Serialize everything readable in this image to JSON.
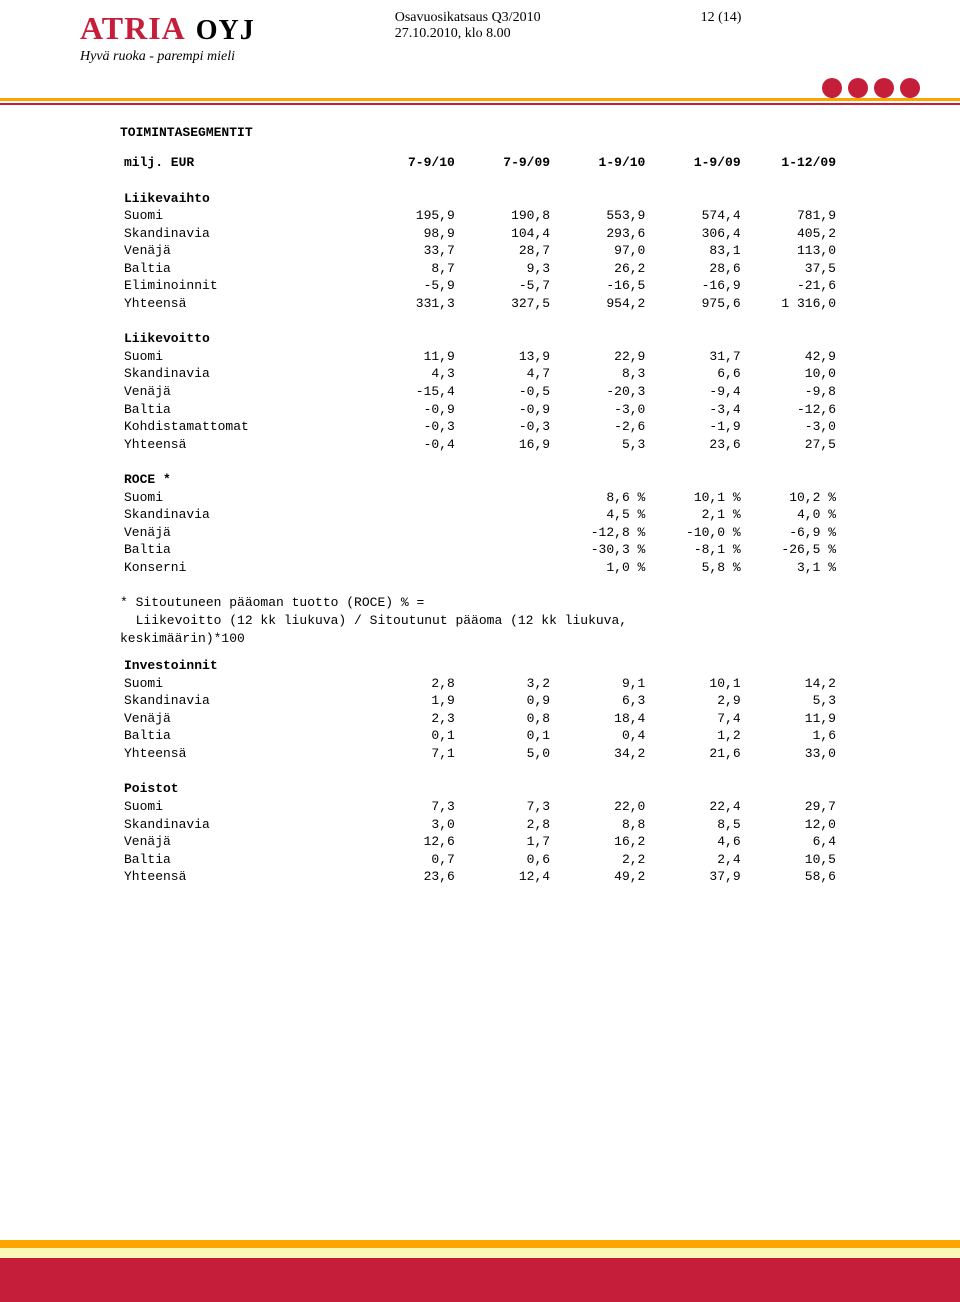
{
  "header": {
    "logo_main": "ATRIA",
    "logo_sub": "OYJ",
    "tagline": "Hyvä ruoka - parempi mieli",
    "doc_title": "Osavuosikatsaus Q3/2010",
    "doc_date": "27.10.2010, klo 8.00",
    "page_no": "12 (14)"
  },
  "colors": {
    "brand_red": "#c41e3a",
    "orange": "#ffa500",
    "cream": "#fef8b8"
  },
  "section_title": "TOIMINTASEGMENTIT",
  "col_header": {
    "label": "milj. EUR",
    "c1": "7-9/10",
    "c2": "7-9/09",
    "c3": "1-9/10",
    "c4": "1-9/09",
    "c5": "1-12/09"
  },
  "groups": [
    {
      "title": "Liikevaihto",
      "rows": [
        {
          "label": "Suomi",
          "v": [
            "195,9",
            "190,8",
            "553,9",
            "574,4",
            "781,9"
          ]
        },
        {
          "label": "Skandinavia",
          "v": [
            "98,9",
            "104,4",
            "293,6",
            "306,4",
            "405,2"
          ]
        },
        {
          "label": "Venäjä",
          "v": [
            "33,7",
            "28,7",
            "97,0",
            "83,1",
            "113,0"
          ]
        },
        {
          "label": "Baltia",
          "v": [
            "8,7",
            "9,3",
            "26,2",
            "28,6",
            "37,5"
          ]
        },
        {
          "label": "Eliminoinnit",
          "v": [
            "-5,9",
            "-5,7",
            "-16,5",
            "-16,9",
            "-21,6"
          ]
        }
      ],
      "total": {
        "label": "Yhteensä",
        "v": [
          "331,3",
          "327,5",
          "954,2",
          "975,6",
          "1 316,0"
        ]
      }
    },
    {
      "title": "Liikevoitto",
      "rows": [
        {
          "label": "Suomi",
          "v": [
            "11,9",
            "13,9",
            "22,9",
            "31,7",
            "42,9"
          ]
        },
        {
          "label": "Skandinavia",
          "v": [
            "4,3",
            "4,7",
            "8,3",
            "6,6",
            "10,0"
          ]
        },
        {
          "label": "Venäjä",
          "v": [
            "-15,4",
            "-0,5",
            "-20,3",
            "-9,4",
            "-9,8"
          ]
        },
        {
          "label": "Baltia",
          "v": [
            "-0,9",
            "-0,9",
            "-3,0",
            "-3,4",
            "-12,6"
          ]
        },
        {
          "label": "Kohdistamattomat",
          "v": [
            "-0,3",
            "-0,3",
            "-2,6",
            "-1,9",
            "-3,0"
          ]
        }
      ],
      "total": {
        "label": "Yhteensä",
        "v": [
          "-0,4",
          "16,9",
          "5,3",
          "23,6",
          "27,5"
        ]
      }
    }
  ],
  "roce": {
    "title": "ROCE *",
    "rows": [
      {
        "label": "Suomi",
        "v": [
          "8,6 %",
          "10,1 %",
          "10,2 %"
        ]
      },
      {
        "label": "Skandinavia",
        "v": [
          "4,5 %",
          "2,1 %",
          "4,0 %"
        ]
      },
      {
        "label": "Venäjä",
        "v": [
          "-12,8 %",
          "-10,0 %",
          "-6,9 %"
        ]
      },
      {
        "label": "Baltia",
        "v": [
          "-30,3 %",
          "-8,1 %",
          "-26,5 %"
        ]
      },
      {
        "label": "Konserni",
        "v": [
          "1,0 %",
          "5,8 %",
          "3,1 %"
        ]
      }
    ]
  },
  "footnote": {
    "l1": "* Sitoutuneen pääoman tuotto (ROCE) % =",
    "l2": "  Liikevoitto (12 kk liukuva) / Sitoutunut pääoma (12 kk liukuva,",
    "l3": "keskimäärin)*100"
  },
  "groups2": [
    {
      "title": "Investoinnit",
      "rows": [
        {
          "label": "Suomi",
          "v": [
            "2,8",
            "3,2",
            "9,1",
            "10,1",
            "14,2"
          ]
        },
        {
          "label": "Skandinavia",
          "v": [
            "1,9",
            "0,9",
            "6,3",
            "2,9",
            "5,3"
          ]
        },
        {
          "label": "Venäjä",
          "v": [
            "2,3",
            "0,8",
            "18,4",
            "7,4",
            "11,9"
          ]
        },
        {
          "label": "Baltia",
          "v": [
            "0,1",
            "0,1",
            "0,4",
            "1,2",
            "1,6"
          ]
        }
      ],
      "total": {
        "label": "Yhteensä",
        "v": [
          "7,1",
          "5,0",
          "34,2",
          "21,6",
          "33,0"
        ]
      }
    },
    {
      "title": "Poistot",
      "rows": [
        {
          "label": "Suomi",
          "v": [
            "7,3",
            "7,3",
            "22,0",
            "22,4",
            "29,7"
          ]
        },
        {
          "label": "Skandinavia",
          "v": [
            "3,0",
            "2,8",
            "8,8",
            "8,5",
            "12,0"
          ]
        },
        {
          "label": "Venäjä",
          "v": [
            "12,6",
            "1,7",
            "16,2",
            "4,6",
            "6,4"
          ]
        },
        {
          "label": "Baltia",
          "v": [
            "0,7",
            "0,6",
            "2,2",
            "2,4",
            "10,5"
          ]
        }
      ],
      "total": {
        "label": "Yhteensä",
        "v": [
          "23,6",
          "12,4",
          "49,2",
          "37,9",
          "58,6"
        ]
      }
    }
  ]
}
